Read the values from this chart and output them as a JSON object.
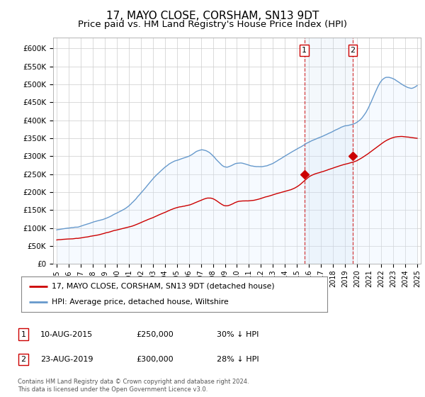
{
  "title": "17, MAYO CLOSE, CORSHAM, SN13 9DT",
  "subtitle": "Price paid vs. HM Land Registry's House Price Index (HPI)",
  "title_fontsize": 11,
  "subtitle_fontsize": 9.5,
  "ylabel_ticks": [
    "£0",
    "£50K",
    "£100K",
    "£150K",
    "£200K",
    "£250K",
    "£300K",
    "£350K",
    "£400K",
    "£450K",
    "£500K",
    "£550K",
    "£600K"
  ],
  "ytick_values": [
    0,
    50000,
    100000,
    150000,
    200000,
    250000,
    300000,
    350000,
    400000,
    450000,
    500000,
    550000,
    600000
  ],
  "ylim": [
    0,
    630000
  ],
  "xlim_start": 1994.7,
  "xlim_end": 2025.3,
  "xtick_years": [
    1995,
    1996,
    1997,
    1998,
    1999,
    2000,
    2001,
    2002,
    2003,
    2004,
    2005,
    2006,
    2007,
    2008,
    2009,
    2010,
    2011,
    2012,
    2013,
    2014,
    2015,
    2016,
    2017,
    2018,
    2019,
    2020,
    2021,
    2022,
    2023,
    2024,
    2025
  ],
  "transaction1_date": 2015.61,
  "transaction1_value": 250000,
  "transaction1_label": "1",
  "transaction2_date": 2019.64,
  "transaction2_value": 300000,
  "transaction2_label": "2",
  "red_color": "#cc0000",
  "blue_color": "#6699cc",
  "blue_fill_color": "#ddeeff",
  "grid_color": "#cccccc",
  "background_color": "#ffffff",
  "legend1_text": "17, MAYO CLOSE, CORSHAM, SN13 9DT (detached house)",
  "legend2_text": "HPI: Average price, detached house, Wiltshire",
  "table_row1": [
    "1",
    "10-AUG-2015",
    "£250,000",
    "30% ↓ HPI"
  ],
  "table_row2": [
    "2",
    "23-AUG-2019",
    "£300,000",
    "28% ↓ HPI"
  ],
  "footnote": "Contains HM Land Registry data © Crown copyright and database right 2024.\nThis data is licensed under the Open Government Licence v3.0."
}
